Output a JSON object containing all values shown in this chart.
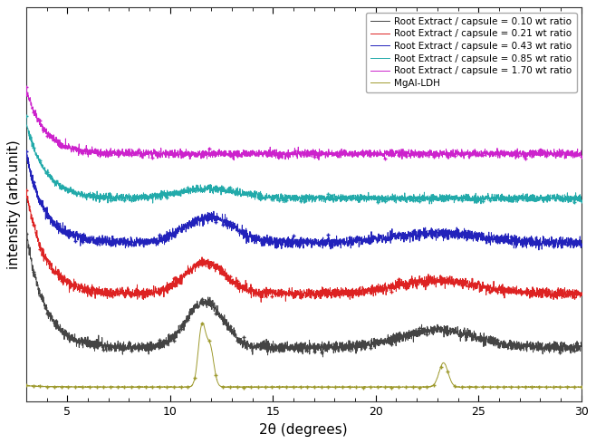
{
  "title": "",
  "xlabel": "2θ (degrees)",
  "ylabel": "intensity (arb.unit)",
  "xlim": [
    3,
    30
  ],
  "legend_entries": [
    "Root Extract / capsule = 0.10 wt ratio",
    "Root Extract / capsule = 0.21 wt ratio",
    "Root Extract / capsule = 0.43 wt ratio",
    "Root Extract / capsule = 0.85 wt ratio",
    "Root Extract / capsule = 1.70 wt ratio",
    "MgAl-LDH"
  ],
  "line_colors": [
    "#444444",
    "#dd2222",
    "#2222bb",
    "#22aaaa",
    "#cc22cc",
    "#9e9a2e"
  ],
  "background_color": "#ffffff",
  "xticks": [
    5,
    10,
    15,
    20,
    25,
    30
  ],
  "legend_fontsize": 7.5,
  "axis_fontsize": 11
}
